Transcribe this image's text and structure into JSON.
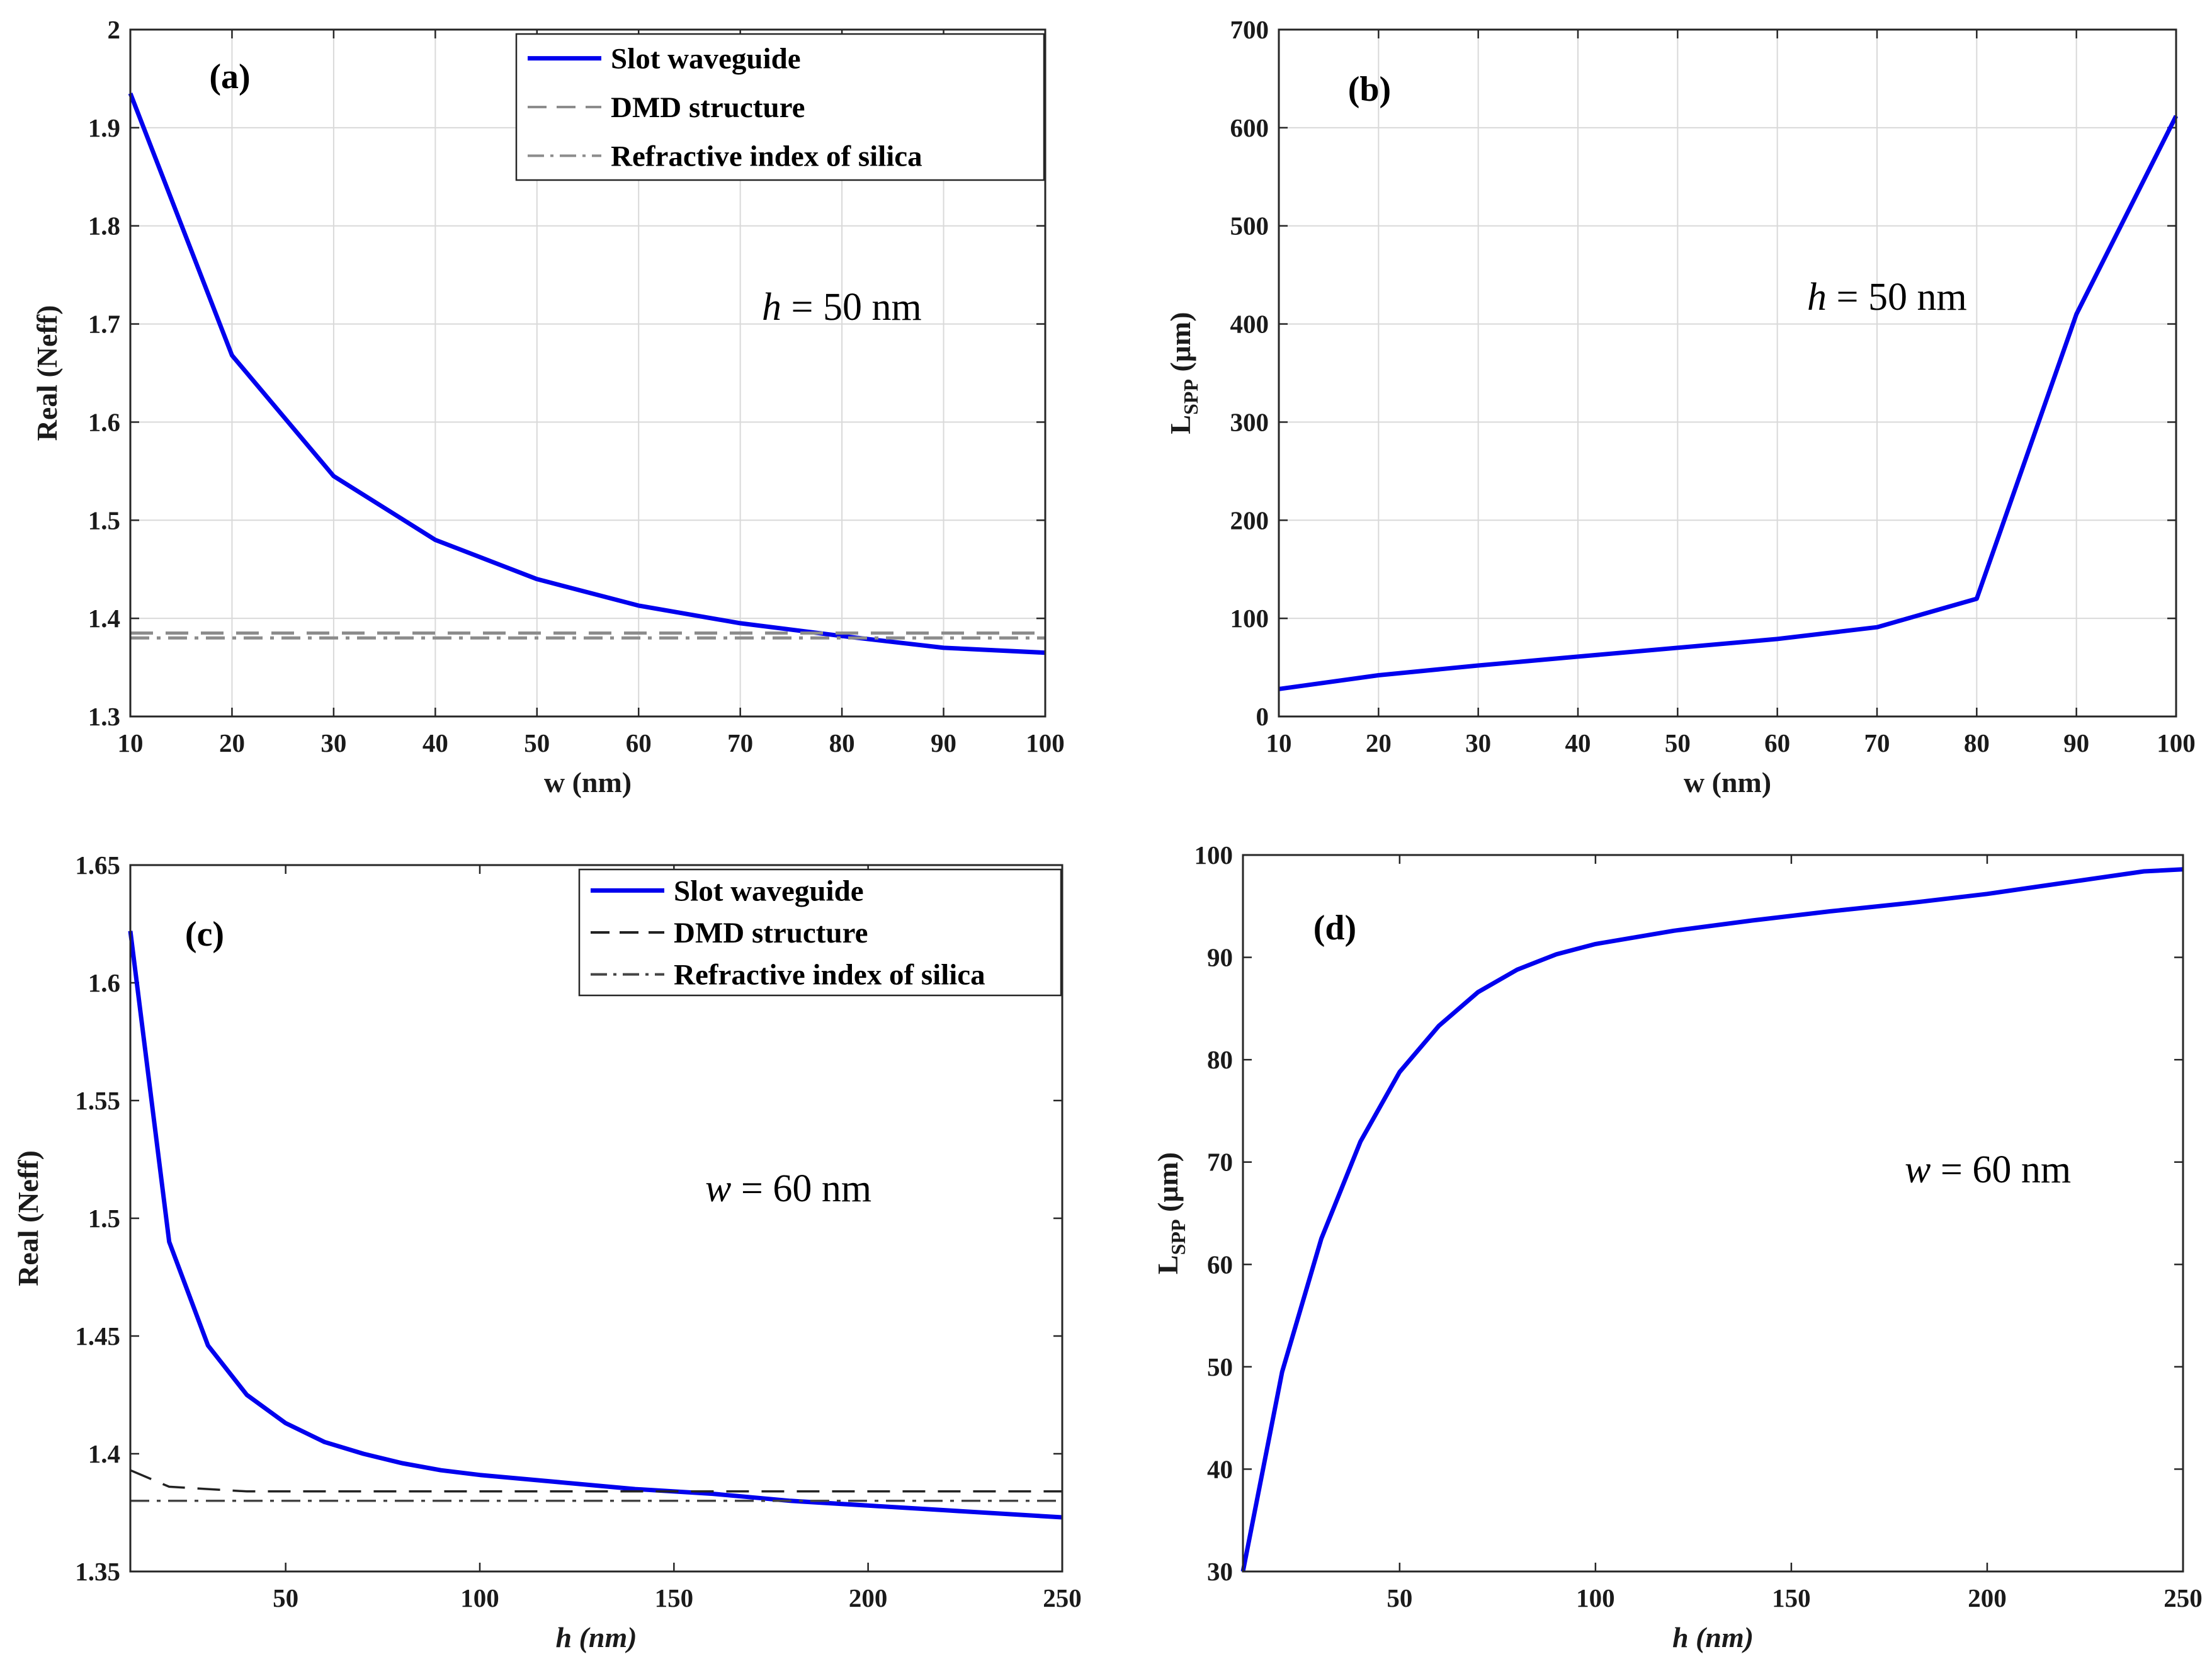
{
  "colors": {
    "series_blue": "#0000ee",
    "dmd_grey": "#8c8c8c",
    "silica_grey": "#8c8c8c",
    "dmd_black": "#222222",
    "silica_black": "#444444",
    "grid": "#d9d9d9",
    "axis": "#262626"
  },
  "chart_data": [
    {
      "id": "a",
      "type": "line",
      "panel_label": "(a)",
      "annotation_var": "h",
      "annotation_rest": " = 50 nm",
      "xlabel_main": "w (nm)",
      "xlabel_italic": false,
      "ylabel": "Real (Neff)",
      "xlim": [
        10,
        100
      ],
      "ylim": [
        1.3,
        2.0
      ],
      "xticks": [
        10,
        20,
        30,
        40,
        50,
        60,
        70,
        80,
        90,
        100
      ],
      "xtick_labels": [
        "10",
        "20",
        "30",
        "40",
        "50",
        "60",
        "70",
        "80",
        "90",
        "100"
      ],
      "yticks": [
        1.3,
        1.4,
        1.5,
        1.6,
        1.7,
        1.8,
        1.9,
        2.0
      ],
      "ytick_labels": [
        "1.3",
        "1.4",
        "1.5",
        "1.6",
        "1.7",
        "1.8",
        "1.9",
        "2"
      ],
      "grid": true,
      "legend_position": "top-right",
      "series": [
        {
          "name": "Slot waveguide",
          "style": "solid",
          "color": "#0000ee",
          "x": [
            10,
            20,
            30,
            40,
            50,
            60,
            70,
            80,
            90,
            100
          ],
          "y": [
            1.935,
            1.668,
            1.545,
            1.48,
            1.44,
            1.413,
            1.395,
            1.382,
            1.37,
            1.365
          ]
        },
        {
          "name": "DMD structure",
          "style": "dashed",
          "color": "#8c8c8c",
          "x": [
            10,
            100
          ],
          "y": [
            1.385,
            1.385
          ]
        },
        {
          "name": "Refractive index of silica",
          "style": "dashdot",
          "color": "#8c8c8c",
          "x": [
            10,
            100
          ],
          "y": [
            1.38,
            1.38
          ]
        }
      ]
    },
    {
      "id": "b",
      "type": "line",
      "panel_label": "(b)",
      "annotation_var": "h",
      "annotation_rest": " = 50 nm",
      "xlabel_main": "w (nm)",
      "xlabel_italic": false,
      "ylabel_main": "L",
      "ylabel_sub": "SPP",
      "ylabel_rest": " (μm)",
      "xlim": [
        10,
        100
      ],
      "ylim": [
        0,
        700
      ],
      "xticks": [
        10,
        20,
        30,
        40,
        50,
        60,
        70,
        80,
        90,
        100
      ],
      "xtick_labels": [
        "10",
        "20",
        "30",
        "40",
        "50",
        "60",
        "70",
        "80",
        "90",
        "100"
      ],
      "yticks": [
        0,
        100,
        200,
        300,
        400,
        500,
        600,
        700
      ],
      "ytick_labels": [
        "0",
        "100",
        "200",
        "300",
        "400",
        "500",
        "600",
        "700"
      ],
      "grid": true,
      "series": [
        {
          "name": "LSPP",
          "style": "solid",
          "color": "#0000ee",
          "x": [
            10,
            20,
            30,
            40,
            50,
            60,
            70,
            80,
            90,
            100
          ],
          "y": [
            28,
            42,
            52,
            61,
            70,
            79,
            91,
            120,
            410,
            612
          ]
        }
      ]
    },
    {
      "id": "c",
      "type": "line",
      "panel_label": "(c)",
      "annotation_var": "w",
      "annotation_rest": " = 60 nm",
      "xlabel_main": "h (nm)",
      "xlabel_italic": true,
      "ylabel": "Real (Neff)",
      "xlim": [
        10,
        250
      ],
      "ylim": [
        1.35,
        1.65
      ],
      "xticks": [
        50,
        100,
        150,
        200,
        250
      ],
      "xtick_labels": [
        "50",
        "100",
        "150",
        "200",
        "250"
      ],
      "yticks": [
        1.35,
        1.4,
        1.45,
        1.5,
        1.55,
        1.6,
        1.65
      ],
      "ytick_labels": [
        "1.35",
        "1.4",
        "1.45",
        "1.5",
        "1.55",
        "1.6",
        "1.65"
      ],
      "grid": false,
      "legend_position": "top-right",
      "series": [
        {
          "name": "Slot waveguide",
          "style": "solid",
          "color": "#0000ee",
          "x": [
            10,
            20,
            30,
            40,
            50,
            60,
            70,
            80,
            90,
            100,
            120,
            140,
            160,
            180,
            200,
            220,
            250
          ],
          "y": [
            1.622,
            1.49,
            1.446,
            1.425,
            1.413,
            1.405,
            1.4,
            1.396,
            1.393,
            1.391,
            1.388,
            1.385,
            1.383,
            1.38,
            1.378,
            1.376,
            1.373
          ]
        },
        {
          "name": "DMD structure",
          "style": "dashed",
          "color": "#222222",
          "x": [
            10,
            20,
            30,
            40,
            250
          ],
          "y": [
            1.393,
            1.386,
            1.385,
            1.384,
            1.384
          ]
        },
        {
          "name": "Refractive index of silica",
          "style": "dashdot",
          "color": "#444444",
          "x": [
            10,
            250
          ],
          "y": [
            1.38,
            1.38
          ]
        }
      ]
    },
    {
      "id": "d",
      "type": "line",
      "panel_label": "(d)",
      "annotation_var": "w",
      "annotation_rest": " = 60 nm",
      "xlabel_main": "h (nm)",
      "xlabel_italic": true,
      "ylabel_main": "L",
      "ylabel_sub": "SPP",
      "ylabel_rest": " (μm)",
      "xlim": [
        10,
        250
      ],
      "ylim": [
        30,
        100
      ],
      "xticks": [
        50,
        100,
        150,
        200,
        250
      ],
      "xtick_labels": [
        "50",
        "100",
        "150",
        "200",
        "250"
      ],
      "yticks": [
        30,
        40,
        50,
        60,
        70,
        80,
        90,
        100
      ],
      "ytick_labels": [
        "30",
        "40",
        "50",
        "60",
        "70",
        "80",
        "90",
        "100"
      ],
      "grid": false,
      "series": [
        {
          "name": "LSPP",
          "style": "solid",
          "color": "#0000ee",
          "x": [
            10,
            20,
            30,
            40,
            50,
            60,
            70,
            80,
            90,
            100,
            120,
            140,
            160,
            180,
            200,
            220,
            240,
            250
          ],
          "y": [
            30,
            49.5,
            62.5,
            72,
            78.8,
            83.3,
            86.6,
            88.8,
            90.3,
            91.3,
            92.6,
            93.6,
            94.5,
            95.3,
            96.2,
            97.3,
            98.4,
            98.6
          ]
        }
      ]
    }
  ]
}
